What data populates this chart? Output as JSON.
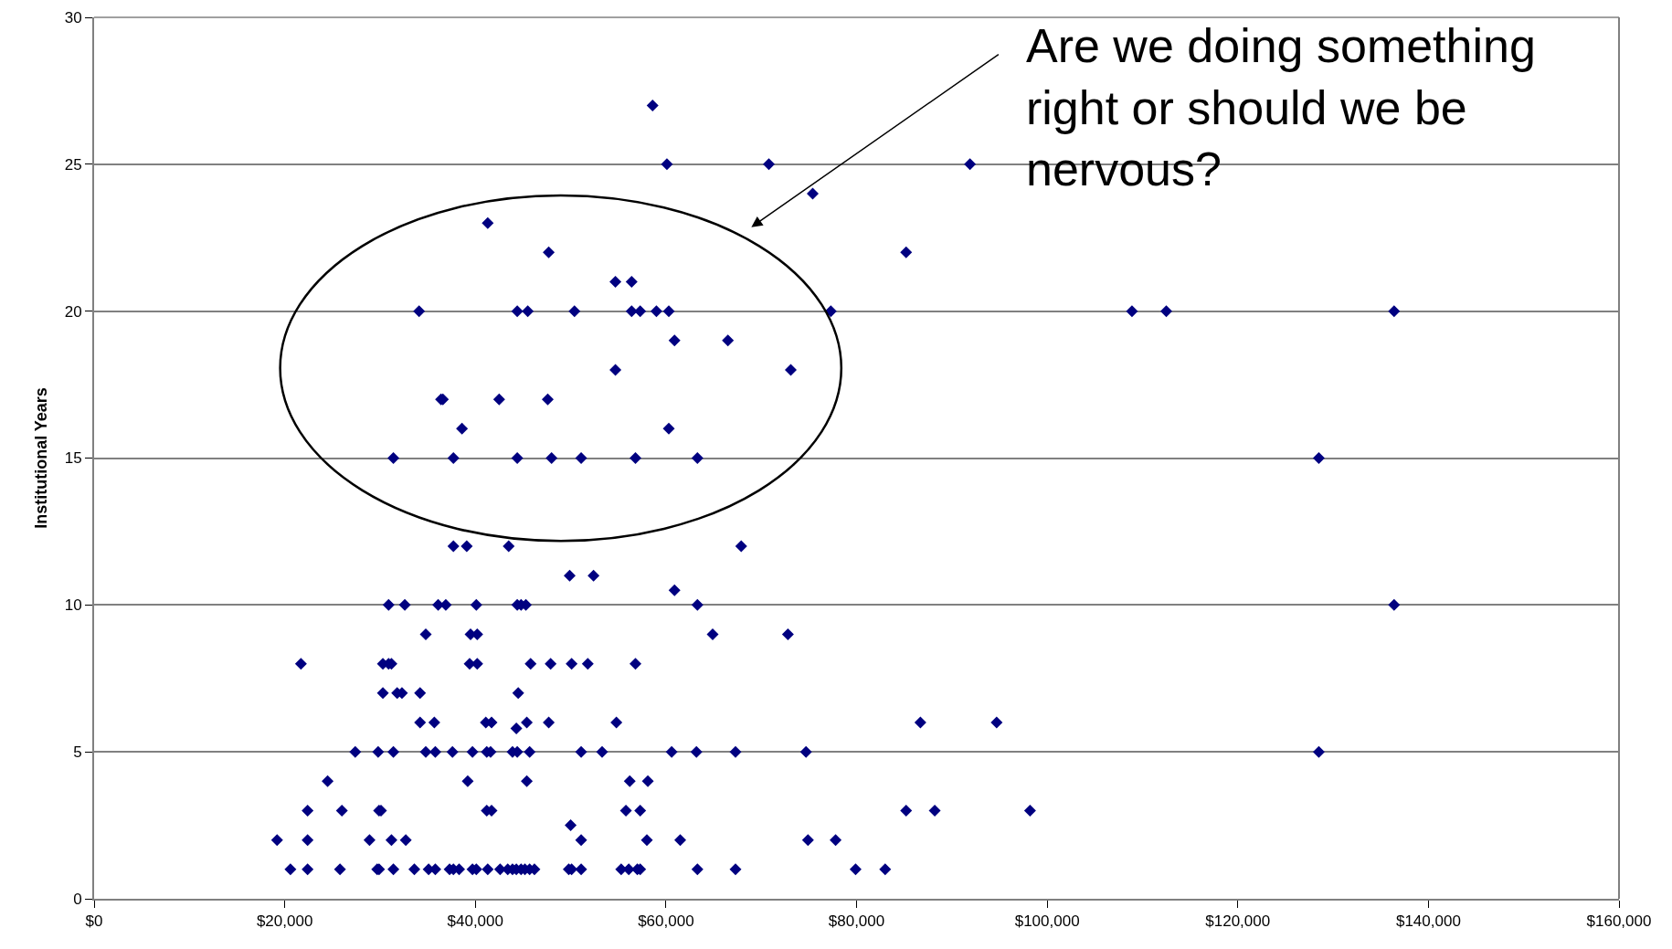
{
  "chart_data": {
    "type": "scatter",
    "ylabel": "Institutional Years",
    "annotations": [
      "Are we doing something right or should we be nervous?"
    ],
    "xlim": [
      0,
      160000
    ],
    "xticks": [
      {
        "value": 0,
        "label": "$0"
      },
      {
        "value": 20000,
        "label": "$20,000"
      },
      {
        "value": 40000,
        "label": "$40,000"
      },
      {
        "value": 60000,
        "label": "$60,000"
      },
      {
        "value": 80000,
        "label": "$80,000"
      },
      {
        "value": 100000,
        "label": "$100,000"
      },
      {
        "value": 120000,
        "label": "$120,000"
      },
      {
        "value": 140000,
        "label": "$140,000"
      },
      {
        "value": 160000,
        "label": "$160,000"
      }
    ],
    "ylim": [
      0,
      30
    ],
    "yticks": [
      0,
      5,
      10,
      15,
      20,
      25,
      30
    ],
    "grid": "y",
    "marker": "diamond",
    "series": [
      {
        "color": "#000080",
        "x": [
          58600,
          60100,
          70800,
          91900,
          75400,
          41300,
          47700,
          85200,
          54700,
          56400,
          34100,
          44400,
          45500,
          50400,
          56400,
          57300,
          59000,
          60300,
          77300,
          108900,
          112500,
          136400,
          60900,
          66500,
          54700,
          73100,
          36400,
          36600,
          42500,
          47600,
          38600,
          60300,
          31400,
          37700,
          44400,
          48000,
          51100,
          56800,
          63300,
          128500,
          37700,
          39100,
          43500,
          67900,
          49900,
          52400,
          60900,
          30900,
          32600,
          36100,
          36900,
          40100,
          44400,
          44800,
          45300,
          63300,
          136400,
          34800,
          39500,
          40200,
          64900,
          72800,
          21700,
          30300,
          30900,
          31200,
          39400,
          40200,
          45800,
          47900,
          50100,
          51800,
          56800,
          30300,
          31800,
          32300,
          34200,
          44500,
          34200,
          35700,
          41100,
          41700,
          45400,
          47700,
          54800,
          86700,
          94700,
          44300,
          27400,
          29800,
          31400,
          34800,
          35800,
          37600,
          39700,
          41200,
          41600,
          43900,
          44400,
          45700,
          51100,
          53300,
          60600,
          63200,
          67300,
          74700,
          128500,
          24500,
          39200,
          45400,
          56200,
          58100,
          22400,
          26000,
          29900,
          30100,
          41200,
          41700,
          55800,
          57300,
          85200,
          88200,
          98200,
          50000,
          19200,
          22400,
          28900,
          31200,
          32700,
          51100,
          58000,
          61500,
          74900,
          77800,
          20600,
          22400,
          25800,
          29700,
          29900,
          31400,
          33600,
          35100,
          35800,
          37300,
          37700,
          38300,
          39700,
          40100,
          41300,
          42600,
          43400,
          43900,
          44300,
          44800,
          45200,
          45700,
          46200,
          49800,
          50100,
          51100,
          55300,
          56100,
          57000,
          57300,
          63300,
          67300,
          79900,
          83000
        ],
        "values": [
          27,
          25,
          25,
          25,
          24,
          23,
          22,
          22,
          21,
          21,
          20,
          20,
          20,
          20,
          20,
          20,
          20,
          20,
          20,
          20,
          20,
          20,
          19,
          19,
          18,
          18,
          17,
          17,
          17,
          17,
          16,
          16,
          15,
          15,
          15,
          15,
          15,
          15,
          15,
          15,
          12,
          12,
          12,
          12,
          11,
          11,
          10.5,
          10,
          10,
          10,
          10,
          10,
          10,
          10,
          10,
          10,
          10,
          9,
          9,
          9,
          9,
          9,
          8,
          8,
          8,
          8,
          8,
          8,
          8,
          8,
          8,
          8,
          8,
          7,
          7,
          7,
          7,
          7,
          6,
          6,
          6,
          6,
          6,
          6,
          6,
          6,
          6,
          5.8,
          5,
          5,
          5,
          5,
          5,
          5,
          5,
          5,
          5,
          5,
          5,
          5,
          5,
          5,
          5,
          5,
          5,
          5,
          5,
          4,
          4,
          4,
          4,
          4,
          3,
          3,
          3,
          3,
          3,
          3,
          3,
          3,
          3,
          3,
          3,
          2.5,
          2,
          2,
          2,
          2,
          2,
          2,
          2,
          2,
          2,
          2,
          1,
          1,
          1,
          1,
          1,
          1,
          1,
          1,
          1,
          1,
          1,
          1,
          1,
          1,
          1,
          1,
          1,
          1,
          1,
          1,
          1,
          1,
          1,
          1,
          1,
          1,
          1,
          1,
          1,
          1,
          1,
          1,
          1,
          1
        ]
      }
    ]
  }
}
